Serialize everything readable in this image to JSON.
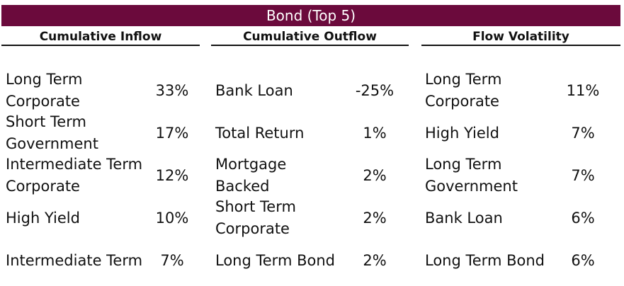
{
  "title": "Bond (Top 5)",
  "columns": [
    {
      "header": "Cumulative Inflow",
      "rows": [
        {
          "label": "Long Term Corporate",
          "value": "33%"
        },
        {
          "label": "Short Term Government",
          "value": "17%"
        },
        {
          "label": "Intermediate Term Corporate",
          "value": "12%"
        },
        {
          "label": "High Yield",
          "value": "10%"
        },
        {
          "label": "Intermediate Term",
          "value": "7%"
        }
      ]
    },
    {
      "header": "Cumulative Outflow",
      "rows": [
        {
          "label": "Bank Loan",
          "value": "-25%"
        },
        {
          "label": "Total Return",
          "value": "1%"
        },
        {
          "label": "Mortgage Backed",
          "value": "2%"
        },
        {
          "label": "Short Term Corporate",
          "value": "2%"
        },
        {
          "label": "Long Term Bond",
          "value": "2%"
        }
      ]
    },
    {
      "header": "Flow Volatility",
      "rows": [
        {
          "label": "Long Term Corporate",
          "value": "11%"
        },
        {
          "label": "High Yield",
          "value": "7%"
        },
        {
          "label": "Long Term Government",
          "value": "7%"
        },
        {
          "label": "Bank Loan",
          "value": "6%"
        },
        {
          "label": "Long Term Bond",
          "value": "6%"
        }
      ]
    }
  ],
  "colors": {
    "banner": "#6b0a3c",
    "banner_text": "#ffffff"
  }
}
